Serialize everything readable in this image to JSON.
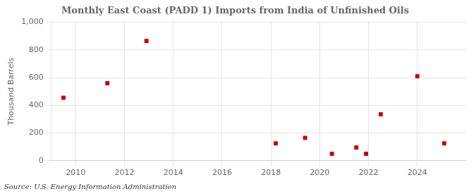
{
  "chart_data": {
    "type": "scatter",
    "title": "Monthly East Coast (PADD 1) Imports from India of Unfinished Oils",
    "ylabel": "Thousand Barrels",
    "annotation": "Source: U.S. Energy Information Administration",
    "x": [
      2009.5,
      2011.3,
      2012.9,
      2018.2,
      2019.4,
      2020.5,
      2021.5,
      2021.9,
      2022.5,
      2024.0,
      2025.1
    ],
    "values": [
      455,
      560,
      865,
      125,
      165,
      50,
      95,
      50,
      335,
      610,
      125
    ],
    "color": "#cc0000",
    "marker": "square",
    "xlim": [
      2009,
      2026
    ],
    "ylim": [
      0,
      1000
    ],
    "xticks": [
      2010,
      2012,
      2014,
      2016,
      2018,
      2020,
      2022,
      2024
    ],
    "yticks": [
      0,
      200,
      400,
      600,
      800,
      {
        "value": 1000,
        "label": "1,000"
      }
    ],
    "grid": true
  }
}
